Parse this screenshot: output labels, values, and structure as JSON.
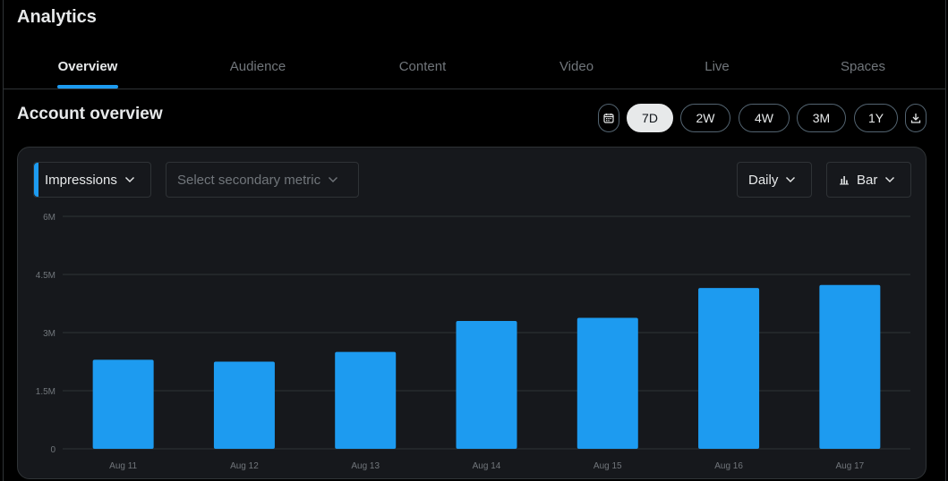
{
  "app": {
    "title": "Analytics"
  },
  "tabs": [
    {
      "label": "Overview",
      "active": true
    },
    {
      "label": "Audience",
      "active": false
    },
    {
      "label": "Content",
      "active": false
    },
    {
      "label": "Video",
      "active": false
    },
    {
      "label": "Live",
      "active": false
    },
    {
      "label": "Spaces",
      "active": false
    }
  ],
  "section": {
    "title": "Account overview"
  },
  "range": {
    "calendar_icon": "calendar-icon",
    "options": [
      "7D",
      "2W",
      "4W",
      "3M",
      "1Y"
    ],
    "selected": "7D",
    "download_icon": "download-icon"
  },
  "controls": {
    "primary_metric": "Impressions",
    "secondary_metric_placeholder": "Select secondary metric",
    "interval": "Daily",
    "chart_type": "Bar",
    "chart_type_icon": "bar-chart-icon"
  },
  "colors": {
    "accent": "#1d9bf0",
    "card_bg": "#16181c",
    "grid": "#2f3336"
  },
  "chart_data": {
    "type": "bar",
    "categories": [
      "Aug 11",
      "Aug 12",
      "Aug 13",
      "Aug 14",
      "Aug 15",
      "Aug 16",
      "Aug 17"
    ],
    "values": [
      2300000,
      2250000,
      2500000,
      3300000,
      3380000,
      4150000,
      4230000
    ],
    "y_tick_labels": [
      "0",
      "1.5M",
      "3M",
      "4.5M",
      "6M"
    ],
    "y_ticks": [
      0,
      1500000,
      3000000,
      4500000,
      6000000
    ],
    "ylim": [
      0,
      6000000
    ],
    "grid": true,
    "color": "#1d9bf0"
  }
}
